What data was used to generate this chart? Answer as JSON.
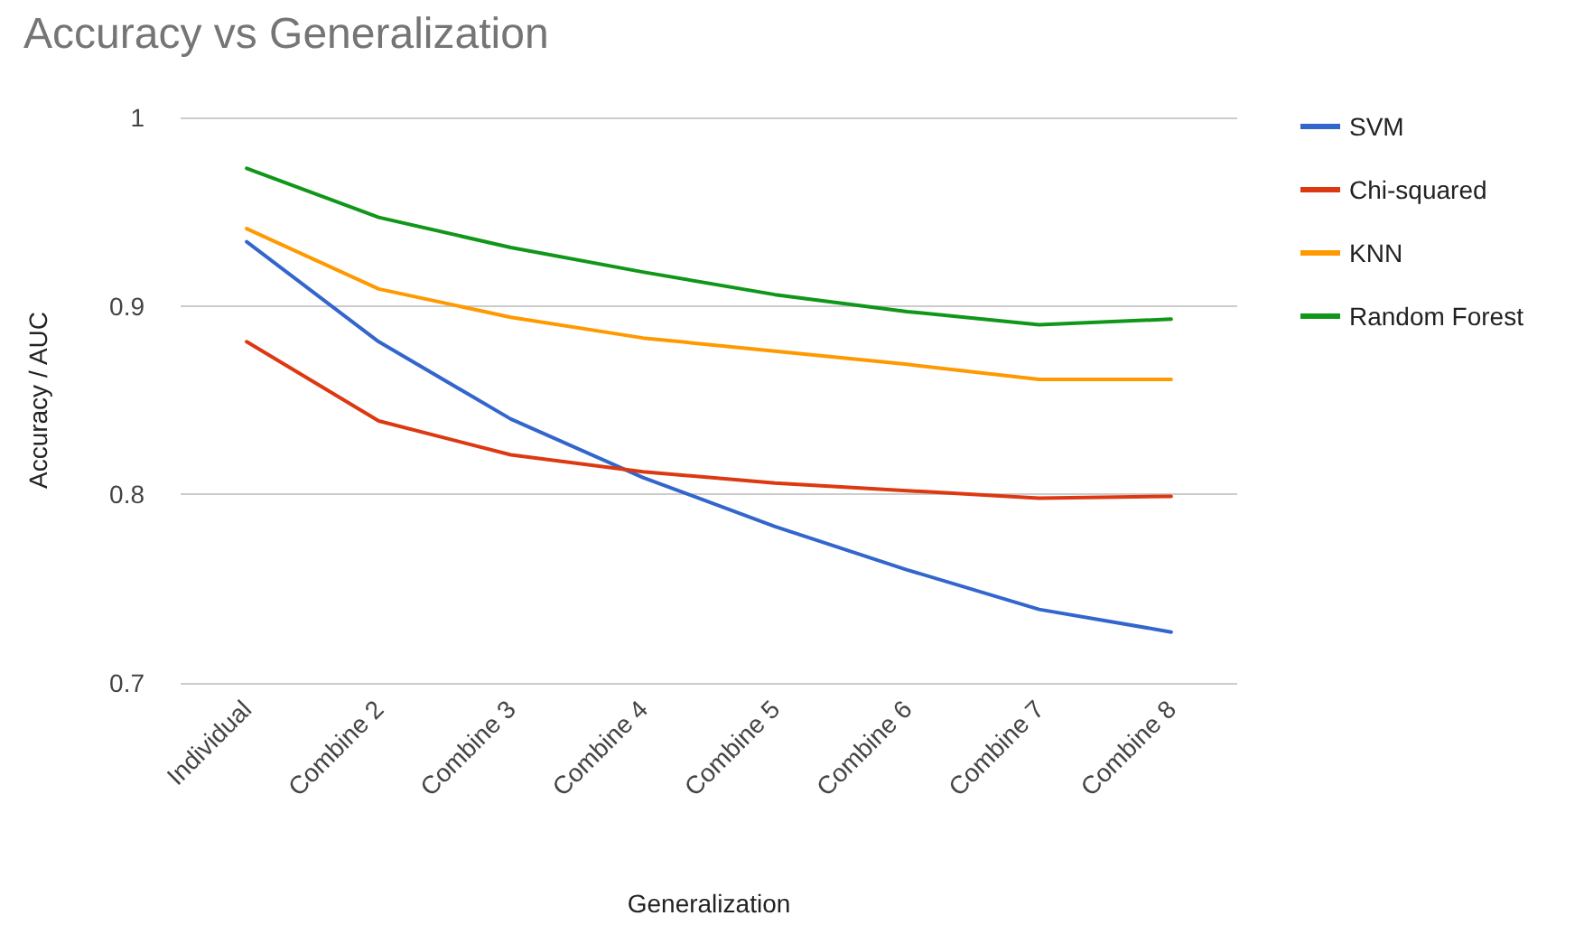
{
  "chart_data": {
    "type": "line",
    "title": "Accuracy vs Generalization",
    "xlabel": "Generalization",
    "ylabel": "Accuracy / AUC",
    "categories": [
      "Individual",
      "Combine 2",
      "Combine 3",
      "Combine 4",
      "Combine 5",
      "Combine 6",
      "Combine 7",
      "Combine 8"
    ],
    "series": [
      {
        "name": "SVM",
        "color": "#3366cc",
        "values": [
          0.934,
          0.881,
          0.84,
          0.809,
          0.783,
          0.76,
          0.739,
          0.727
        ]
      },
      {
        "name": "Chi-squared",
        "color": "#dc3912",
        "values": [
          0.881,
          0.839,
          0.821,
          0.812,
          0.806,
          0.802,
          0.798,
          0.799
        ]
      },
      {
        "name": "KNN",
        "color": "#ff9900",
        "values": [
          0.941,
          0.909,
          0.894,
          0.883,
          0.876,
          0.869,
          0.861,
          0.861
        ]
      },
      {
        "name": "Random Forest",
        "color": "#109618",
        "values": [
          0.973,
          0.947,
          0.931,
          0.918,
          0.906,
          0.897,
          0.89,
          0.893
        ]
      }
    ],
    "ylim": [
      0.7,
      1
    ],
    "yticks": [
      0.7,
      0.8,
      0.9,
      1
    ],
    "grid": "y",
    "legend": "right",
    "marker": "none",
    "line_style": "solid"
  }
}
